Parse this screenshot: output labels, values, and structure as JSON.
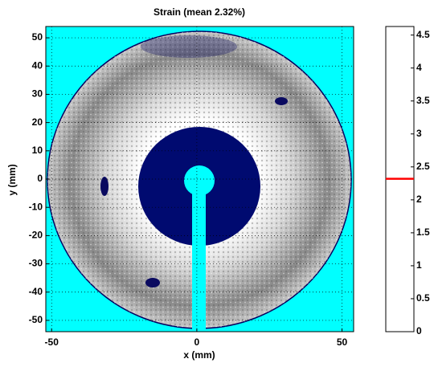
{
  "chart_data": {
    "type": "image",
    "title": "Strain (mean 2.32%)",
    "xlabel": "x (mm)",
    "ylabel": "y (mm)",
    "xlim": [
      -52,
      54
    ],
    "ylim": [
      -54,
      54
    ],
    "xticks": [
      -50,
      0,
      50
    ],
    "yticks": [
      -50,
      -40,
      -30,
      -20,
      -10,
      0,
      10,
      20,
      30,
      40,
      50
    ],
    "grid": true,
    "background": "#00ffff",
    "colorbar": {
      "ylim": [
        0,
        4.63
      ],
      "yticks": [
        0,
        0.5,
        1,
        1.5,
        2,
        2.5,
        3,
        3.5,
        4,
        4.5
      ],
      "mean": 2.32,
      "mean_color": "#ff0000"
    }
  }
}
